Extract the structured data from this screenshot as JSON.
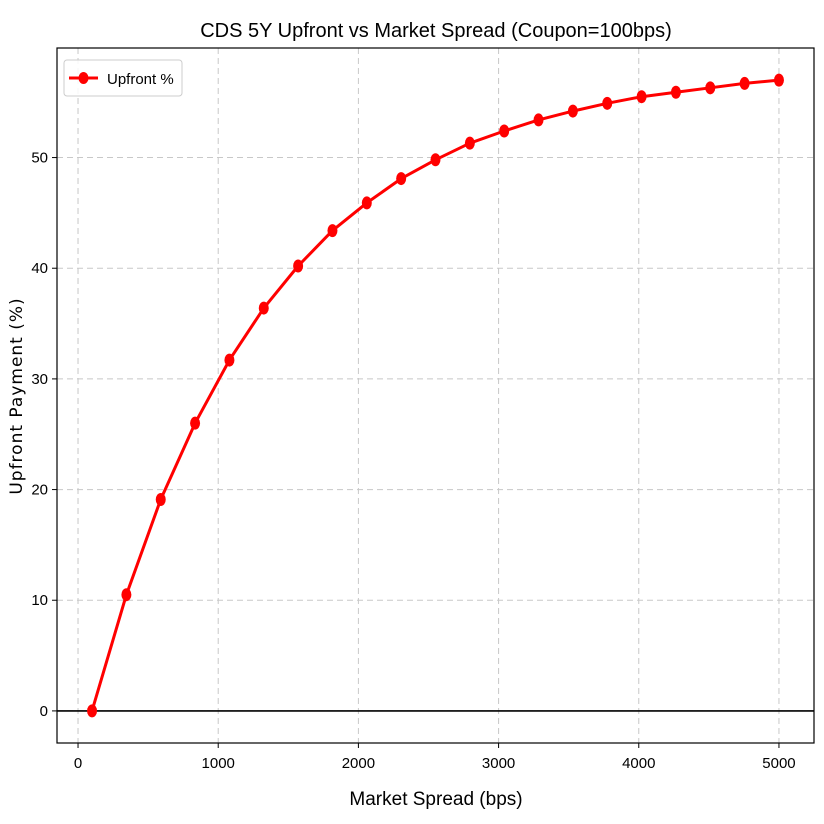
{
  "chart_data": {
    "type": "line",
    "title": "CDS 5Y Upfront vs Market Spread (Coupon=100bps)",
    "xlabel": "Market Spread (bps)",
    "ylabel": "Upfront Payment (%)",
    "xlim": [
      -150,
      5250
    ],
    "ylim": [
      -2.9,
      59.9
    ],
    "xticks": [
      0,
      1000,
      2000,
      3000,
      4000,
      5000
    ],
    "yticks": [
      0,
      10,
      20,
      30,
      40,
      50
    ],
    "grid": true,
    "legend_position": "upper left",
    "reference_line": {
      "y": 0,
      "color": "#000000"
    },
    "series": [
      {
        "name": "Upfront %",
        "color": "#ff0000",
        "marker": "circle",
        "x": [
          100,
          345,
          590,
          835,
          1080,
          1325,
          1570,
          1815,
          2060,
          2305,
          2550,
          2795,
          3040,
          3285,
          3530,
          3775,
          4020,
          4265,
          4510,
          4755,
          5000
        ],
        "values": [
          0.0,
          10.5,
          19.1,
          26.0,
          31.7,
          36.4,
          40.2,
          43.4,
          45.9,
          48.1,
          49.8,
          51.3,
          52.4,
          53.4,
          54.2,
          54.9,
          55.5,
          55.9,
          56.3,
          56.7,
          57.0
        ]
      }
    ]
  }
}
